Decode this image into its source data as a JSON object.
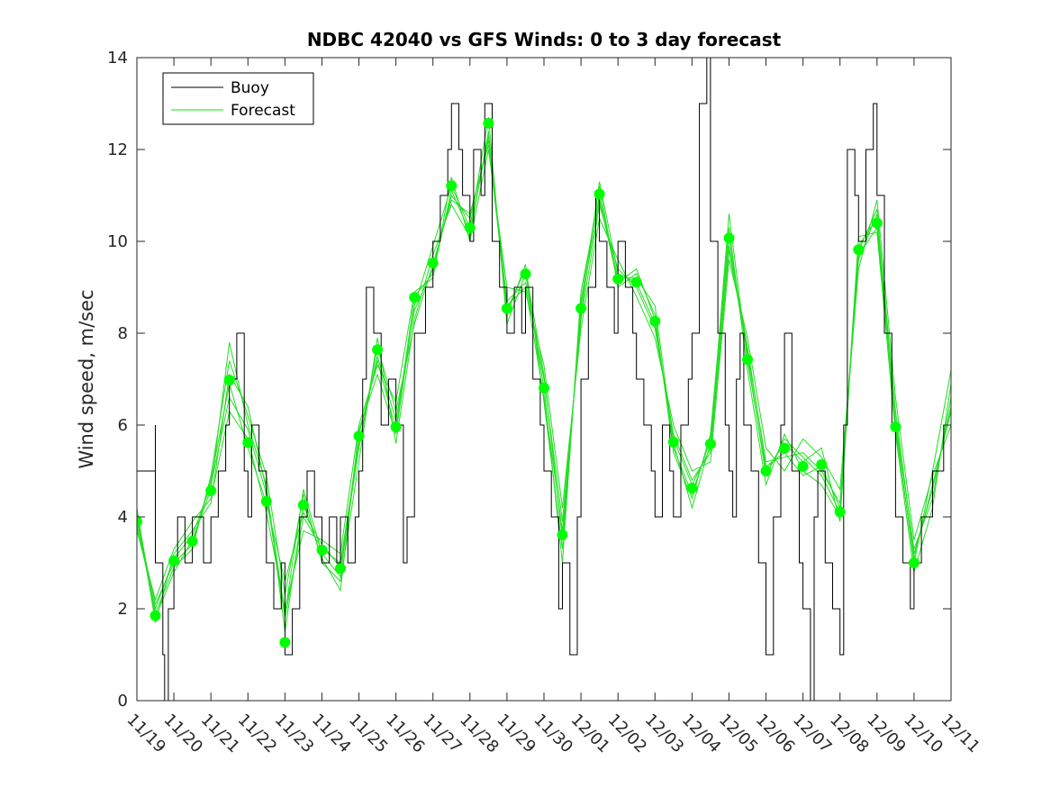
{
  "chart_data": {
    "type": "line",
    "title": "NDBC 42040 vs GFS Winds: 0 to 3 day forecast",
    "xlabel": "",
    "ylabel": "Wind speed, m/sec",
    "ylim": [
      0,
      14
    ],
    "yticks": [
      0,
      2,
      4,
      6,
      8,
      10,
      12,
      14
    ],
    "xlim": [
      0,
      22
    ],
    "x_unit": "days since 11/19",
    "xtick_labels": [
      "11/19",
      "11/20",
      "11/21",
      "11/22",
      "11/23",
      "11/24",
      "11/25",
      "11/26",
      "11/27",
      "11/28",
      "11/29",
      "11/30",
      "12/01",
      "12/02",
      "12/03",
      "12/04",
      "12/05",
      "12/06",
      "12/07",
      "12/08",
      "12/09",
      "12/10",
      "12/11"
    ],
    "legend": {
      "position": "top-left",
      "entries": [
        {
          "label": "Buoy",
          "color": "#000000"
        },
        {
          "label": "Forecast",
          "color": "#00ee00"
        }
      ]
    },
    "colors": {
      "buoy": "#000000",
      "forecast": "#22dd22",
      "analysis": "#00ff00"
    },
    "buoy": {
      "name": "Buoy",
      "x": [
        0,
        0.5,
        0.5,
        0.5,
        0.7,
        0.75,
        0.85,
        1,
        1.1,
        1.3,
        1.5,
        1.8,
        2,
        2.2,
        2.4,
        2.5,
        2.7,
        2.9,
        3,
        3.1,
        3.3,
        3.5,
        3.7,
        3.9,
        4,
        4.2,
        4.4,
        4.6,
        4.8,
        5,
        5.2,
        5.4,
        5.5,
        5.7,
        5.9,
        6,
        6.1,
        6.2,
        6.4,
        6.6,
        6.8,
        7,
        7.2,
        7.3,
        7.5,
        7.8,
        8,
        8.2,
        8.4,
        8.5,
        8.7,
        8.8,
        9,
        9.1,
        9.3,
        9.4,
        9.6,
        9.8,
        10,
        10.2,
        10.4,
        10.5,
        10.7,
        10.9,
        11,
        11.2,
        11.4,
        11.5,
        11.7,
        11.9,
        12,
        12.2,
        12.4,
        12.5,
        12.7,
        12.9,
        13,
        13.2,
        13.4,
        13.5,
        13.7,
        13.9,
        14,
        14.2,
        14.4,
        14.5,
        14.7,
        14.9,
        15,
        15.2,
        15.4,
        15.5,
        15.7,
        15.9,
        16,
        16.1,
        16.2,
        16.3,
        16.4,
        16.6,
        16.8,
        17,
        17.2,
        17.4,
        17.5,
        17.7,
        17.9,
        18,
        18.2,
        18.3,
        18.4,
        18.6,
        18.8,
        19,
        19.1,
        19.2,
        19.4,
        19.5,
        19.7,
        19.9,
        20,
        20.2,
        20.4,
        20.5,
        20.7,
        20.9,
        21,
        21.2,
        21.5,
        21.8,
        22
      ],
      "values": [
        5,
        6,
        4,
        3,
        1,
        0,
        2,
        3,
        4,
        3,
        4,
        3,
        4,
        5,
        6,
        7,
        8,
        5,
        4,
        6,
        5,
        3,
        2,
        3,
        1,
        2,
        4,
        5,
        4,
        3,
        4,
        3,
        4,
        3,
        4,
        5,
        7,
        9,
        8,
        6,
        7,
        6,
        3,
        4,
        8,
        9,
        10,
        11,
        12,
        13,
        12,
        11,
        10,
        12,
        11,
        13,
        10,
        9,
        8,
        9,
        8,
        9,
        7,
        6,
        5,
        4,
        2,
        3,
        1,
        4,
        7,
        9,
        11,
        10,
        9,
        8,
        10,
        9,
        8,
        7,
        6,
        5,
        4,
        6,
        5,
        4,
        6,
        7,
        8,
        13,
        14,
        10,
        8,
        6,
        5,
        4,
        7,
        8,
        6,
        5,
        3,
        1,
        4,
        6,
        8,
        5,
        3,
        2,
        0,
        4,
        5,
        3,
        2,
        1,
        6,
        12,
        11,
        10,
        12,
        13,
        11,
        8,
        6,
        4,
        3,
        2,
        3,
        4,
        5,
        6,
        7
      ]
    },
    "analysis": {
      "name": "Forecast analysis points",
      "x": [
        0,
        0.5,
        1,
        1.5,
        2,
        2.5,
        3,
        3.5,
        4,
        4.5,
        5,
        5.5,
        6,
        6.5,
        7,
        7.5,
        8,
        8.5,
        9,
        9.5,
        10,
        10.5,
        11,
        11.5,
        12,
        12.5,
        13,
        13.5,
        14,
        14.5,
        15,
        15.5,
        16,
        16.5,
        17,
        17.5,
        18,
        18.5,
        19,
        19.5,
        20,
        20.5,
        21
      ],
      "values": [
        3.9,
        1.85,
        3.05,
        3.47,
        4.57,
        6.98,
        5.62,
        4.34,
        1.27,
        4.26,
        3.28,
        2.88,
        5.76,
        7.64,
        5.96,
        8.78,
        9.53,
        11.21,
        10.3,
        12.57,
        8.54,
        9.29,
        6.81,
        3.61,
        8.54,
        11.03,
        9.18,
        9.11,
        8.26,
        5.63,
        4.63,
        5.59,
        10.07,
        7.43,
        5.0,
        5.5,
        5.1,
        5.14,
        4.11,
        9.82,
        10.4,
        5.96,
        3.0
      ]
    },
    "forecast_series": [
      {
        "name": "Forecast",
        "x": [
          0,
          0.5,
          1,
          1.5,
          2,
          2.5,
          3,
          3.5,
          4,
          4.5,
          5,
          5.5,
          6,
          6.5,
          7,
          7.5,
          8,
          8.5,
          9,
          9.5,
          10,
          10.5,
          11,
          11.5,
          12,
          12.5,
          13,
          13.5,
          14,
          14.5,
          15,
          15.5,
          16,
          16.5,
          17,
          17.5,
          18,
          18.5,
          19,
          19.5,
          20,
          20.5,
          21,
          21.5,
          22
        ],
        "values": [
          3.8,
          2.0,
          3.1,
          3.6,
          4.7,
          6.6,
          5.9,
          4.5,
          1.8,
          4.0,
          3.3,
          3.0,
          5.6,
          7.5,
          6.1,
          8.5,
          9.4,
          11.0,
          10.5,
          12.2,
          8.7,
          9.1,
          7.0,
          3.9,
          8.3,
          10.8,
          9.4,
          9.0,
          8.1,
          5.8,
          4.8,
          5.4,
          9.8,
          7.6,
          5.2,
          5.3,
          5.4,
          5.0,
          4.3,
          9.6,
          10.6,
          6.3,
          3.2,
          4.6,
          6.4
        ]
      },
      {
        "name": "Forecast",
        "x": [
          0,
          0.5,
          1,
          1.5,
          2,
          2.5,
          3,
          3.5,
          4,
          4.5,
          5,
          5.5,
          6,
          6.5,
          7,
          7.5,
          8,
          8.5,
          9,
          9.5,
          10,
          10.5,
          11,
          11.5,
          12,
          12.5,
          13,
          13.5,
          14,
          14.5,
          15,
          15.5,
          16,
          16.5,
          17,
          17.5,
          18,
          18.5,
          19,
          19.5,
          20,
          20.5,
          21,
          21.5,
          22
        ],
        "values": [
          4.1,
          1.9,
          2.9,
          3.3,
          4.9,
          7.4,
          6.2,
          4.9,
          2.3,
          4.5,
          3.0,
          2.6,
          5.2,
          7.9,
          5.6,
          8.3,
          9.7,
          10.8,
          10.1,
          12.4,
          8.4,
          9.5,
          6.5,
          3.3,
          8.7,
          11.2,
          9.0,
          9.3,
          8.4,
          5.4,
          4.4,
          5.8,
          10.3,
          7.2,
          4.7,
          5.8,
          5.0,
          4.7,
          4.0,
          10.1,
          10.2,
          5.8,
          2.8,
          4.2,
          6.9
        ]
      },
      {
        "name": "Forecast",
        "x": [
          0,
          0.5,
          1,
          1.5,
          2,
          2.5,
          3,
          3.5,
          4,
          4.5,
          5,
          5.5,
          6,
          6.5,
          7,
          7.5,
          8,
          8.5,
          9,
          9.5,
          10,
          10.5,
          11,
          11.5,
          12,
          12.5,
          13,
          13.5,
          14,
          14.5,
          15,
          15.5,
          16,
          16.5,
          17,
          17.5,
          18,
          18.5,
          19,
          19.5,
          20,
          20.5,
          21,
          21.5,
          22
        ],
        "values": [
          3.7,
          2.2,
          3.3,
          3.9,
          4.4,
          6.3,
          5.7,
          4.1,
          2.0,
          3.7,
          3.5,
          3.2,
          6.0,
          7.3,
          6.5,
          8.9,
          9.2,
          11.4,
          10.0,
          12.0,
          9.0,
          8.9,
          7.3,
          4.2,
          8.1,
          10.5,
          9.6,
          8.8,
          7.9,
          6.0,
          5.0,
          5.2,
          9.6,
          7.9,
          5.5,
          5.0,
          5.7,
          5.3,
          4.6,
          9.4,
          10.9,
          6.6,
          3.5,
          4.9,
          6.0
        ]
      },
      {
        "name": "Forecast",
        "x": [
          0,
          0.5,
          1,
          1.5,
          2,
          2.5,
          3,
          3.5,
          4,
          4.5,
          5,
          5.5,
          6,
          6.5,
          7,
          7.5,
          8,
          8.5,
          9,
          9.5,
          10,
          10.5,
          11,
          11.5,
          12,
          12.5,
          13,
          13.5,
          14,
          14.5,
          15,
          15.5,
          16,
          16.5,
          17,
          17.5,
          18,
          18.5,
          19,
          19.5,
          20,
          20.5,
          21,
          21.5,
          22
        ],
        "values": [
          4.0,
          1.8,
          2.8,
          3.5,
          4.6,
          7.8,
          6.0,
          4.7,
          1.5,
          4.3,
          3.1,
          2.4,
          5.9,
          7.1,
          5.8,
          8.6,
          9.9,
          11.2,
          10.3,
          12.7,
          8.2,
          9.3,
          6.8,
          3.0,
          8.9,
          11.0,
          9.2,
          9.2,
          8.6,
          5.6,
          4.2,
          5.6,
          10.6,
          7.4,
          5.0,
          5.6,
          5.2,
          5.5,
          3.9,
          9.9,
          10.5,
          6.0,
          3.0,
          5.0,
          7.2
        ]
      },
      {
        "name": "Forecast",
        "x": [
          0,
          0.5,
          1,
          1.5,
          2,
          2.5,
          3,
          3.5,
          4,
          4.5,
          5,
          5.5,
          6,
          6.5,
          7,
          7.5,
          8,
          8.5,
          9,
          9.5,
          10,
          10.5,
          11,
          11.5,
          12,
          12.5,
          13,
          13.5,
          14,
          14.5,
          15,
          15.5,
          16,
          16.5,
          17,
          17.5,
          18,
          18.5,
          19,
          19.5,
          20,
          20.5,
          21,
          21.5,
          22
        ],
        "values": [
          3.9,
          2.1,
          3.0,
          3.4,
          4.8,
          6.9,
          5.5,
          4.3,
          2.6,
          4.1,
          3.4,
          2.9,
          5.5,
          7.7,
          6.3,
          8.2,
          9.5,
          10.9,
          10.6,
          12.1,
          8.6,
          9.0,
          6.6,
          3.7,
          8.4,
          11.3,
          9.3,
          9.1,
          8.2,
          5.7,
          4.7,
          5.5,
          9.9,
          7.7,
          5.1,
          5.4,
          4.9,
          5.1,
          4.2,
          9.7,
          10.3,
          6.1,
          3.3,
          4.4,
          6.6
        ]
      },
      {
        "name": "Forecast",
        "x": [
          0,
          0.5,
          1,
          1.5,
          2,
          2.5,
          3,
          3.5,
          4,
          4.5,
          5,
          5.5,
          6,
          6.5,
          7,
          7.5,
          8,
          8.5,
          9,
          9.5,
          10,
          10.5,
          11,
          11.5,
          12,
          12.5,
          13,
          13.5,
          14,
          14.5,
          15,
          15.5,
          16,
          16.5,
          17,
          17.5,
          18,
          18.5,
          19,
          19.5,
          20,
          20.5,
          21,
          21.5,
          22
        ],
        "values": [
          4.2,
          1.7,
          3.2,
          3.7,
          4.3,
          7.1,
          6.4,
          4.6,
          1.9,
          4.6,
          3.2,
          2.7,
          5.8,
          7.4,
          5.9,
          8.8,
          9.3,
          11.1,
          10.2,
          12.3,
          8.5,
          9.4,
          7.1,
          3.5,
          8.6,
          10.9,
          9.1,
          9.4,
          8.3,
          5.5,
          4.5,
          5.7,
          10.1,
          7.5,
          4.9,
          5.7,
          5.3,
          4.9,
          4.1,
          9.8,
          10.7,
          5.9,
          3.1,
          4.7,
          6.3
        ]
      }
    ]
  }
}
